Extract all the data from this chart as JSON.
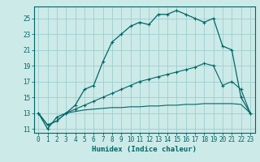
{
  "xlabel": "Humidex (Indice chaleur)",
  "bg_color": "#cceae8",
  "grid_color": "#9ecece",
  "line_color": "#006666",
  "xlim": [
    -0.5,
    23.5
  ],
  "ylim": [
    10.5,
    26.5
  ],
  "yticks": [
    11,
    13,
    15,
    17,
    19,
    21,
    23,
    25
  ],
  "xticks": [
    0,
    1,
    2,
    3,
    4,
    5,
    6,
    7,
    8,
    9,
    10,
    11,
    12,
    13,
    14,
    15,
    16,
    17,
    18,
    19,
    20,
    21,
    22,
    23
  ],
  "curve1_x": [
    0,
    1,
    2,
    3,
    4,
    5,
    6,
    7,
    8,
    9,
    10,
    11,
    12,
    13,
    14,
    15,
    16,
    17,
    18,
    19,
    20,
    21,
    22,
    23
  ],
  "curve1_y": [
    13,
    11,
    12.5,
    13,
    14,
    16,
    16.5,
    19.5,
    22,
    23,
    24,
    24.5,
    24.2,
    25.5,
    25.5,
    26,
    25.5,
    25,
    24.5,
    25,
    21.5,
    21,
    15,
    13
  ],
  "curve1_has_markers": true,
  "curve2_x": [
    0,
    1,
    2,
    3,
    4,
    5,
    6,
    7,
    8,
    9,
    10,
    11,
    12,
    13,
    14,
    15,
    16,
    17,
    18,
    19,
    20,
    21,
    22,
    23
  ],
  "curve2_y": [
    13,
    11.5,
    12,
    13,
    13.2,
    13.4,
    13.5,
    13.6,
    13.7,
    13.7,
    13.8,
    13.8,
    13.9,
    13.9,
    14.0,
    14.0,
    14.1,
    14.1,
    14.2,
    14.2,
    14.2,
    14.2,
    14.1,
    13
  ],
  "curve2_has_markers": false,
  "curve3_x": [
    0,
    1,
    2,
    3,
    4,
    5,
    6,
    7,
    8,
    9,
    10,
    11,
    12,
    13,
    14,
    15,
    16,
    17,
    18,
    19,
    20,
    21,
    22,
    23
  ],
  "curve3_y": [
    13,
    11.5,
    12,
    13,
    13.5,
    14,
    14.5,
    15,
    15.5,
    16,
    16.5,
    17,
    17.3,
    17.6,
    17.9,
    18.2,
    18.5,
    18.8,
    19.3,
    19.0,
    16.5,
    17,
    16,
    13
  ],
  "curve3_has_markers": true
}
